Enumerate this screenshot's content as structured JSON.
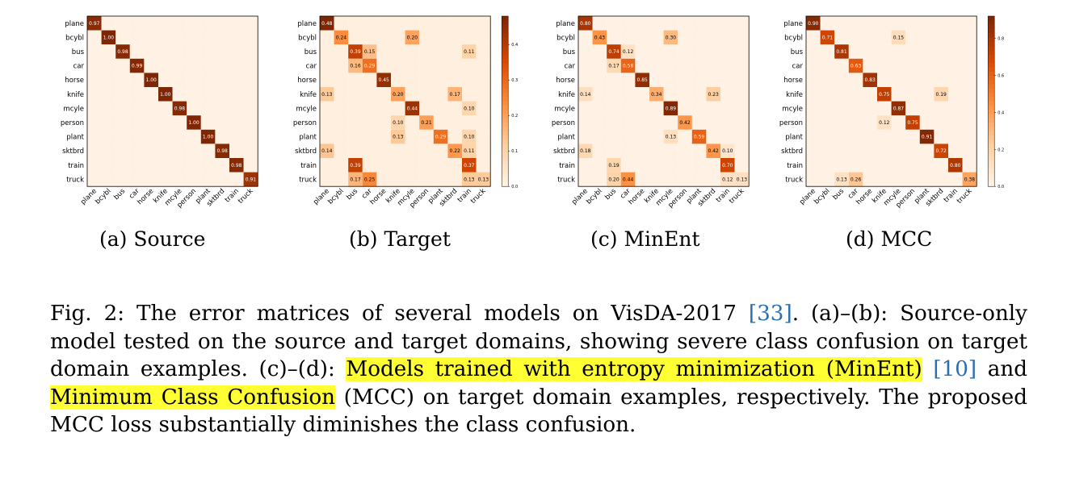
{
  "classes": [
    "plane",
    "bcybl",
    "bus",
    "car",
    "horse",
    "knife",
    "mcyle",
    "person",
    "plant",
    "sktbrd",
    "train",
    "truck"
  ],
  "panels": [
    {
      "id": "source",
      "subcaption": "(a) Source",
      "colorbar": false,
      "vmax": 1.0,
      "diagonal": [
        0.97,
        1.0,
        0.98,
        0.99,
        1.0,
        1.0,
        0.98,
        1.0,
        1.0,
        0.98,
        0.98,
        0.91
      ],
      "off_diagonal": []
    },
    {
      "id": "target",
      "subcaption": "(b) Target",
      "colorbar": true,
      "vmax": 0.48,
      "colorbar_ticks": [
        "0.4",
        "0.3",
        "0.2",
        "0.1",
        "0.0"
      ],
      "diagonal": [
        0.48,
        0.24,
        0.39,
        0.29,
        0.45,
        0.2,
        0.44,
        0.21,
        0.29,
        0.22,
        0.37,
        0.13
      ],
      "off_diagonal": [
        {
          "row": 1,
          "col": 6,
          "value": 0.2
        },
        {
          "row": 2,
          "col": 3,
          "value": 0.15
        },
        {
          "row": 2,
          "col": 10,
          "value": 0.11
        },
        {
          "row": 3,
          "col": 2,
          "value": 0.16
        },
        {
          "row": 5,
          "col": 0,
          "value": 0.13
        },
        {
          "row": 5,
          "col": 9,
          "value": 0.17
        },
        {
          "row": 6,
          "col": 10,
          "value": 0.1
        },
        {
          "row": 7,
          "col": 5,
          "value": 0.1
        },
        {
          "row": 8,
          "col": 5,
          "value": 0.13
        },
        {
          "row": 8,
          "col": 10,
          "value": 0.1
        },
        {
          "row": 9,
          "col": 0,
          "value": 0.14
        },
        {
          "row": 9,
          "col": 10,
          "value": 0.11
        },
        {
          "row": 10,
          "col": 2,
          "value": 0.39
        },
        {
          "row": 11,
          "col": 2,
          "value": 0.17
        },
        {
          "row": 11,
          "col": 3,
          "value": 0.25
        },
        {
          "row": 11,
          "col": 10,
          "value": 0.13
        }
      ]
    },
    {
      "id": "minent",
      "subcaption": "(c) MinEnt",
      "colorbar": false,
      "vmax": 0.9,
      "diagonal": [
        0.8,
        0.43,
        0.74,
        0.58,
        0.85,
        0.34,
        0.89,
        0.42,
        0.59,
        0.42,
        0.7,
        0.13
      ],
      "off_diagonal": [
        {
          "row": 1,
          "col": 6,
          "value": 0.3
        },
        {
          "row": 2,
          "col": 3,
          "value": 0.12
        },
        {
          "row": 3,
          "col": 2,
          "value": 0.17
        },
        {
          "row": 5,
          "col": 0,
          "value": 0.14
        },
        {
          "row": 5,
          "col": 9,
          "value": 0.23
        },
        {
          "row": 8,
          "col": 6,
          "value": 0.13
        },
        {
          "row": 9,
          "col": 0,
          "value": 0.18
        },
        {
          "row": 9,
          "col": 10,
          "value": 0.1
        },
        {
          "row": 10,
          "col": 2,
          "value": 0.19
        },
        {
          "row": 11,
          "col": 2,
          "value": 0.2
        },
        {
          "row": 11,
          "col": 3,
          "value": 0.44
        },
        {
          "row": 11,
          "col": 10,
          "value": 0.12
        }
      ]
    },
    {
      "id": "mcc",
      "subcaption": "(d) MCC",
      "colorbar": true,
      "vmax": 0.92,
      "colorbar_ticks": [
        "0.8",
        "0.6",
        "0.4",
        "0.2",
        "0.0"
      ],
      "diagonal": [
        0.9,
        0.71,
        0.81,
        0.63,
        0.83,
        0.75,
        0.87,
        0.75,
        0.91,
        0.72,
        0.8,
        0.38
      ],
      "off_diagonal": [
        {
          "row": 1,
          "col": 6,
          "value": 0.15
        },
        {
          "row": 5,
          "col": 9,
          "value": 0.19
        },
        {
          "row": 7,
          "col": 5,
          "value": 0.12
        },
        {
          "row": 11,
          "col": 2,
          "value": 0.13
        },
        {
          "row": 11,
          "col": 3,
          "value": 0.26
        }
      ]
    }
  ],
  "caption": {
    "prefix": "Fig. 2: The error matrices of several models on VisDA-2017 ",
    "ref1": "[33]",
    "part2": ". (a)–(b): Source-only model tested on the source and target domains, showing severe class confusion on target domain examples. (c)–(d): ",
    "highlight1": "Models trained with entropy minimization (MinEnt)",
    "part3": " ",
    "ref2": "[10]",
    "part4": " and ",
    "highlight2": "Minimum Class Confusion",
    "part5": " (MCC) on target domain examples, respectively. The proposed MCC loss substantially diminishes the class confusion."
  }
}
